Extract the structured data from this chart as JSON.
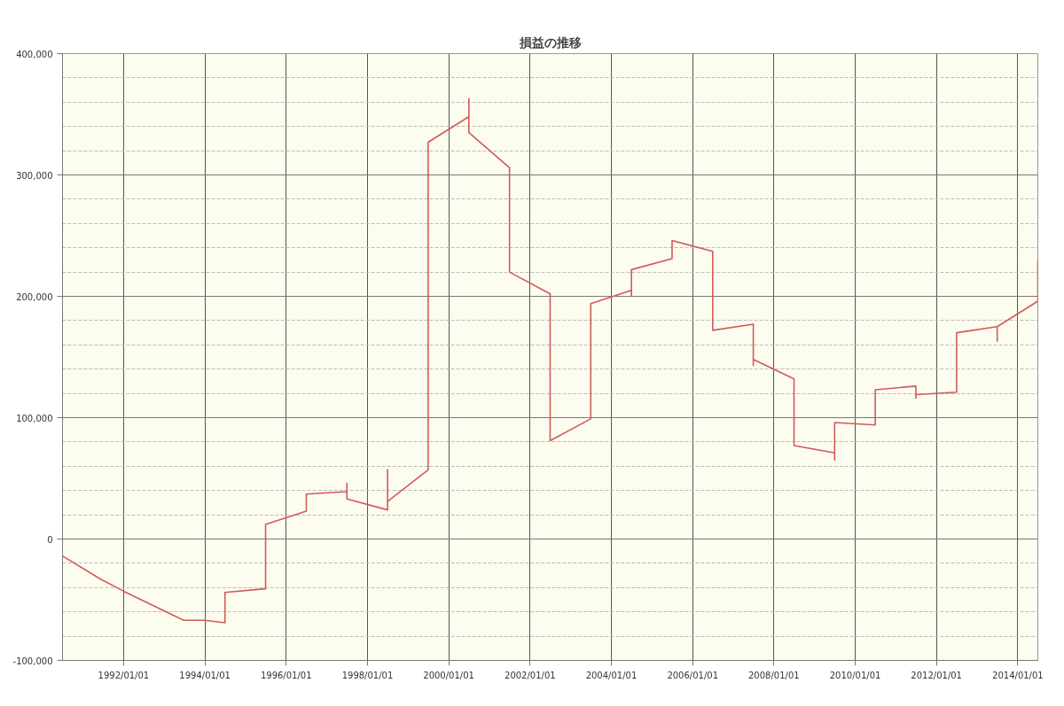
{
  "chart_data": {
    "type": "line",
    "title": "損益の推移",
    "x": [
      "1990-07-01",
      "1991-06-08",
      "1992-01-01",
      "1993-06-24",
      "1994-01-01",
      "1994-06-30",
      "1994-06-30",
      "1995-06-30",
      "1995-06-30",
      "1996-06-30",
      "1996-06-30",
      "1997-06-30",
      "1997-06-30",
      "1997-06-30",
      "1998-06-30",
      "1998-06-30",
      "1998-06-30",
      "1999-06-30",
      "1999-06-30",
      "2000-06-30",
      "2000-06-30",
      "2000-06-30",
      "2001-06-30",
      "2001-06-30",
      "2002-06-30",
      "2002-06-30",
      "2003-06-30",
      "2003-06-30",
      "2004-06-30",
      "2004-06-30",
      "2004-06-30",
      "2005-06-30",
      "2005-06-30",
      "2006-06-30",
      "2006-06-30",
      "2007-06-30",
      "2007-06-30",
      "2007-06-30",
      "2008-06-30",
      "2008-06-30",
      "2009-06-30",
      "2009-06-30",
      "2009-06-30",
      "2010-06-30",
      "2010-06-30",
      "2011-06-30",
      "2011-06-30",
      "2011-06-30",
      "2012-06-30",
      "2012-06-30",
      "2013-06-30",
      "2013-06-30",
      "2013-06-30",
      "2014-06-30",
      "2014-06-30"
    ],
    "series": [
      {
        "color": "#d05a5a",
        "values": [
          -14000,
          -33000,
          -43000,
          -67000,
          -67000,
          -69000,
          -44000,
          -41000,
          12000,
          23000,
          37000,
          39000,
          46000,
          33000,
          24000,
          57000,
          31000,
          57000,
          327000,
          348000,
          363000,
          335000,
          306000,
          220000,
          202000,
          81000,
          99000,
          194000,
          205000,
          200000,
          222000,
          231000,
          246000,
          237000,
          172000,
          177000,
          143000,
          148000,
          132000,
          77000,
          71000,
          65000,
          96000,
          94000,
          123000,
          126000,
          116000,
          119000,
          121000,
          170000,
          175000,
          163000,
          175000,
          196000,
          230000
        ]
      }
    ],
    "xlim": [
      "1990-07-01",
      "2014-06-30"
    ],
    "xticks": [
      {
        "value": "1992-01-01",
        "label": "1992/01/01"
      },
      {
        "value": "1994-01-01",
        "label": "1994/01/01"
      },
      {
        "value": "1996-01-01",
        "label": "1996/01/01"
      },
      {
        "value": "1998-01-01",
        "label": "1998/01/01"
      },
      {
        "value": "2000-01-01",
        "label": "2000/01/01"
      },
      {
        "value": "2002-01-01",
        "label": "2002/01/01"
      },
      {
        "value": "2004-01-01",
        "label": "2004/01/01"
      },
      {
        "value": "2006-01-01",
        "label": "2006/01/01"
      },
      {
        "value": "2008-01-01",
        "label": "2008/01/01"
      },
      {
        "value": "2010-01-01",
        "label": "2010/01/01"
      },
      {
        "value": "2012-01-01",
        "label": "2012/01/01"
      },
      {
        "value": "2014-01-01",
        "label": "2014/01/01"
      }
    ],
    "ylim": [
      -100000,
      400000
    ],
    "yticks": [
      {
        "value": -100000,
        "label": "-100,000"
      },
      {
        "value": -80000,
        "label": null
      },
      {
        "value": -60000,
        "label": null
      },
      {
        "value": -40000,
        "label": null
      },
      {
        "value": -20000,
        "label": null
      },
      {
        "value": 0,
        "label": "0"
      },
      {
        "value": 20000,
        "label": null
      },
      {
        "value": 40000,
        "label": null
      },
      {
        "value": 60000,
        "label": null
      },
      {
        "value": 80000,
        "label": null
      },
      {
        "value": 100000,
        "label": "100,000"
      },
      {
        "value": 120000,
        "label": null
      },
      {
        "value": 140000,
        "label": null
      },
      {
        "value": 160000,
        "label": null
      },
      {
        "value": 180000,
        "label": null
      },
      {
        "value": 200000,
        "label": "200,000"
      },
      {
        "value": 220000,
        "label": null
      },
      {
        "value": 240000,
        "label": null
      },
      {
        "value": 260000,
        "label": null
      },
      {
        "value": 280000,
        "label": null
      },
      {
        "value": 300000,
        "label": "300,000"
      },
      {
        "value": 320000,
        "label": null
      },
      {
        "value": 340000,
        "label": null
      },
      {
        "value": 360000,
        "label": null
      },
      {
        "value": 380000,
        "label": null
      },
      {
        "value": 400000,
        "label": "400,000"
      }
    ],
    "grid": true,
    "line_style": "solid"
  }
}
